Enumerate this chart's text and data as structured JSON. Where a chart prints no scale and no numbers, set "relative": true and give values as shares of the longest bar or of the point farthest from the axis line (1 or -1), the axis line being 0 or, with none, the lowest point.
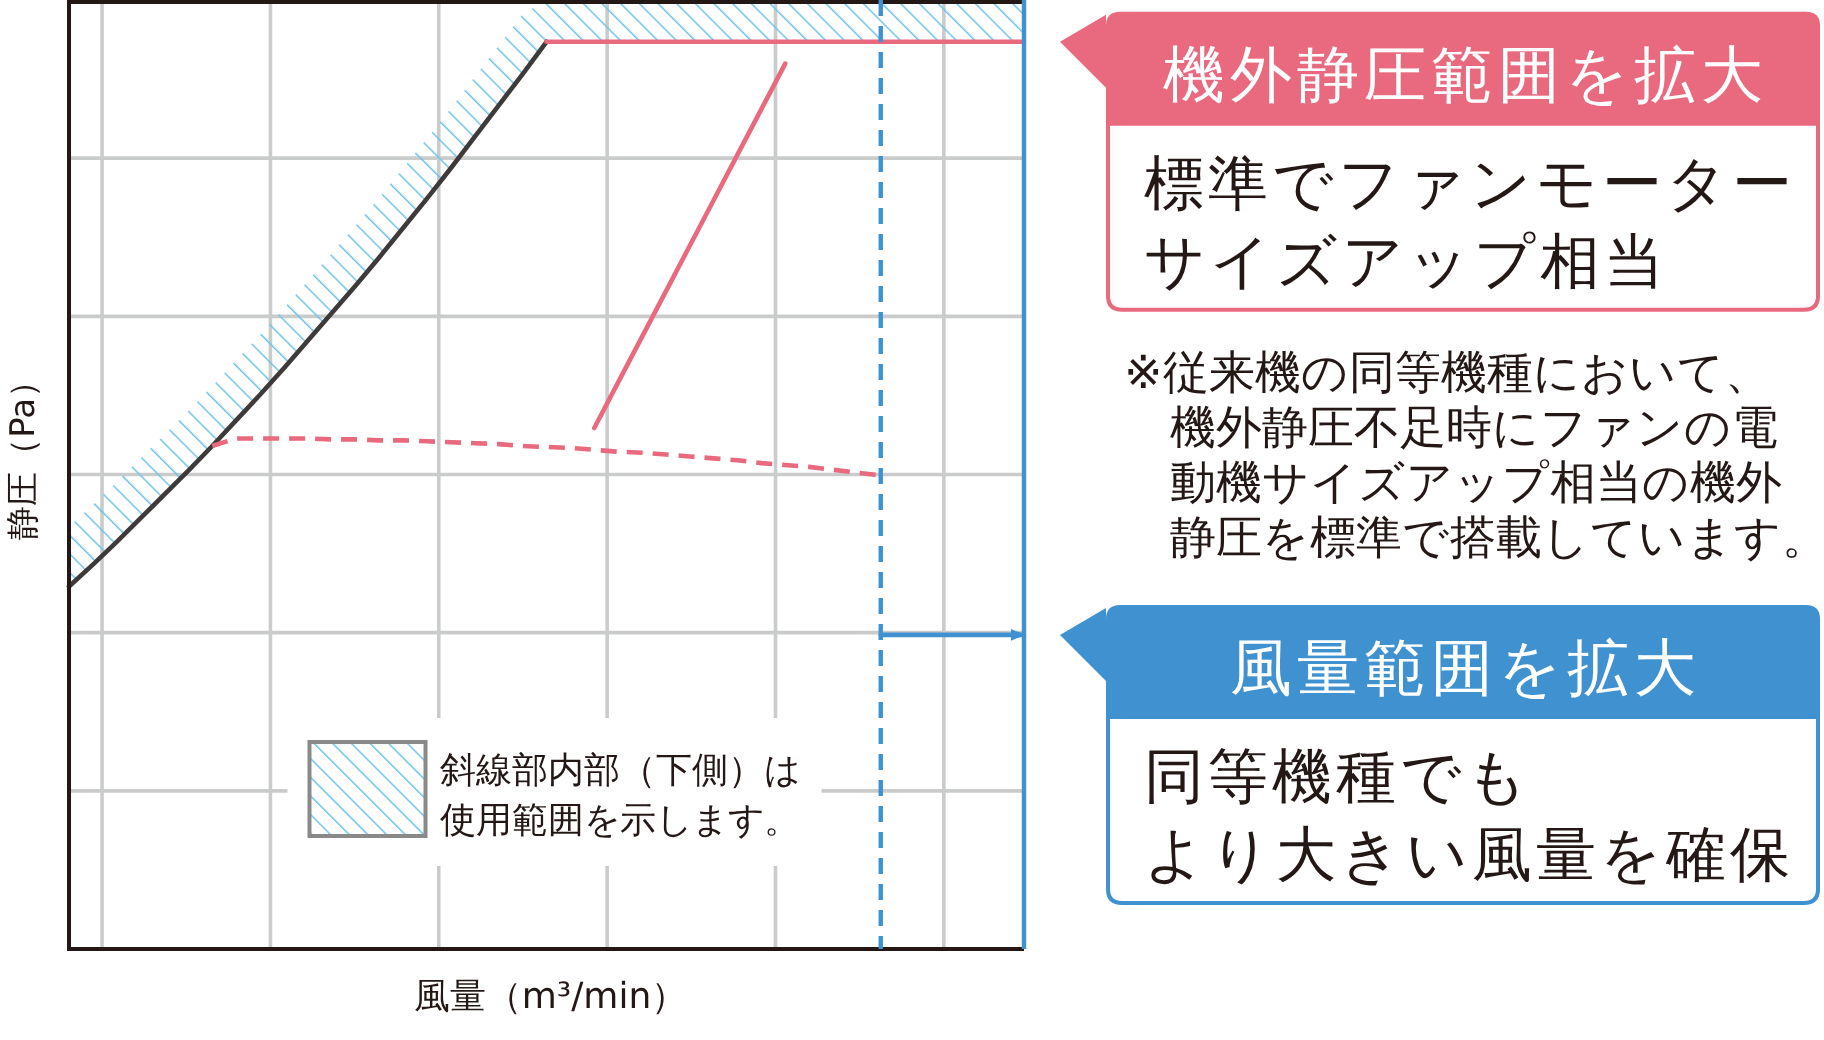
{
  "chart_data": {
    "type": "line",
    "relative": true,
    "xlabel": "風量（m³/min）",
    "ylabel": "静圧（Pa）",
    "categories": [
      null,
      null,
      null,
      null,
      null,
      null,
      null,
      null,
      null,
      null,
      null,
      null,
      null,
      null,
      null,
      null,
      null,
      null,
      null,
      null,
      null,
      null,
      null,
      null,
      null,
      null,
      null,
      null,
      null,
      null,
      null,
      null,
      null,
      null,
      null,
      null,
      null,
      null,
      null,
      null,
      null
    ],
    "grid": true,
    "legend": "bottom",
    "series": [
      {
        "name": "斜線部内部（下側）は使用範囲を示します。",
        "type": "area",
        "color": "#6ec3ea",
        "values": [
          0.445,
          0.468,
          0.492,
          0.517,
          0.542,
          0.567,
          0.593,
          0.62,
          0.647,
          0.675,
          0.704,
          0.733,
          0.762,
          0.792,
          0.823,
          0.854,
          0.886,
          0.919,
          0.952,
          0.985,
          1.0,
          1.0,
          1.0,
          1.0,
          1.0,
          1.0,
          1.0,
          1.0,
          1.0,
          1.0,
          1.0,
          1.0,
          1.0,
          1.0,
          1.0,
          1.0,
          1.0,
          1.0,
          1.0,
          1.0,
          1.0
        ]
      },
      {
        "color": "#3e3a39",
        "values": [
          0.382,
          0.405,
          0.429,
          0.454,
          0.479,
          0.504,
          0.53,
          0.557,
          0.584,
          0.612,
          0.641,
          0.67,
          0.699,
          0.729,
          0.76,
          0.791,
          0.823,
          0.856,
          0.889,
          0.922,
          0.956,
          null,
          null,
          null,
          null,
          null,
          null,
          null,
          null,
          null,
          null,
          null,
          null,
          null,
          null,
          null,
          null,
          null,
          null,
          null,
          null
        ]
      },
      {
        "color": "#e9697e",
        "values": [
          null,
          null,
          null,
          null,
          null,
          null,
          null,
          null,
          null,
          null,
          null,
          null,
          null,
          null,
          null,
          null,
          null,
          null,
          null,
          null,
          0.956,
          0.956,
          0.956,
          0.956,
          0.956,
          0.956,
          0.956,
          0.956,
          0.956,
          0.956,
          0.956,
          0.956,
          0.956,
          0.956,
          0.956,
          0.956,
          0.956,
          0.956,
          0.956,
          0.956,
          0.956
        ]
      },
      {
        "color": "#e9697e",
        "line_style": "dashed",
        "values": [
          null,
          null,
          null,
          null,
          null,
          null,
          0.53,
          0.538,
          0.538,
          0.538,
          0.538,
          0.537,
          0.537,
          0.536,
          0.536,
          0.535,
          0.534,
          0.533,
          0.532,
          0.53,
          0.529,
          0.528,
          0.526,
          0.524,
          0.523,
          0.521,
          0.519,
          0.517,
          0.515,
          0.512,
          0.51,
          0.508,
          0.505,
          0.502,
          0.499,
          null,
          null,
          null,
          null,
          null,
          null
        ]
      },
      {
        "color": "#e9697e",
        "values": [
          null,
          null,
          null,
          null,
          null,
          null,
          null,
          null,
          null,
          null,
          null,
          null,
          null,
          null,
          null,
          null,
          null,
          null,
          null,
          null,
          null,
          null,
          0.549,
          0.597,
          0.645,
          0.693,
          0.741,
          0.789,
          0.837,
          0.885,
          0.933,
          null,
          null,
          null,
          null,
          null,
          null,
          null,
          null,
          null,
          null
        ]
      },
      {
        "color": "#3f91d0",
        "values": [
          null,
          null,
          null,
          null,
          null,
          null,
          null,
          null,
          null,
          null,
          null,
          null,
          null,
          null,
          null,
          null,
          null,
          null,
          null,
          null,
          null,
          null,
          null,
          null,
          null,
          null,
          null,
          null,
          null,
          null,
          null,
          null,
          null,
          null,
          0.331,
          0.331,
          0.331,
          0.331,
          0.331,
          0.331,
          0.331
        ]
      }
    ],
    "annotations": [
      "機外静圧範囲を拡大",
      "標準でファンモーターサイズアップ相当",
      "※従来機の同等機種において、機外静圧不足時にファンの電動機サイズアップ相当の機外静圧を標準で搭載しています。",
      "風量範囲を拡大",
      "同等機種でも",
      "より大きい風量を確保"
    ]
  }
}
